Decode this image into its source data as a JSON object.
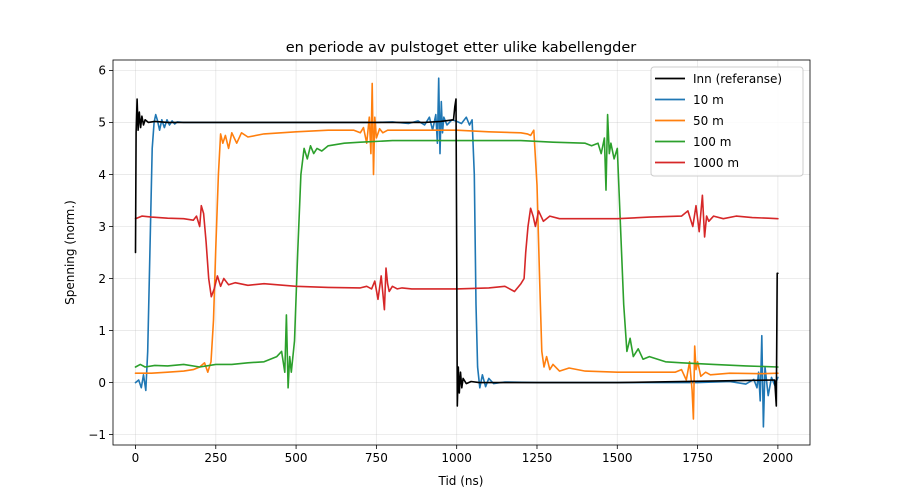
{
  "chart_data": {
    "type": "line",
    "title": "en periode av pulstoget etter ulike kabellengder",
    "xlabel": "Tid (ns)",
    "ylabel": "Spenning (norm.)",
    "xlim": [
      -70,
      2100
    ],
    "ylim": [
      -1.2,
      6.2
    ],
    "xticks": [
      0,
      250,
      500,
      750,
      1000,
      1250,
      1500,
      1750,
      2000
    ],
    "xtick_labels": [
      "0",
      "250",
      "500",
      "750",
      "1000",
      "1250",
      "1500",
      "1750",
      "2000"
    ],
    "yticks": [
      -1,
      0,
      1,
      2,
      3,
      4,
      5,
      6
    ],
    "ytick_labels": [
      "−1",
      "0",
      "1",
      "2",
      "3",
      "4",
      "5",
      "6"
    ],
    "grid": true,
    "legend_position": "top-right",
    "series": [
      {
        "name": "Inn (referanse)",
        "color": "#000000",
        "x": [
          0,
          2,
          5,
          8,
          12,
          16,
          20,
          25,
          30,
          40,
          60,
          100,
          500,
          900,
          950,
          990,
          994,
          998,
          1000,
          1002,
          1005,
          1008,
          1012,
          1016,
          1020,
          1030,
          1045,
          1070,
          1200,
          1500,
          1990,
          1995,
          1998,
          2000
        ],
        "y": [
          2.5,
          4.8,
          5.45,
          4.85,
          5.2,
          4.9,
          5.12,
          4.95,
          5.05,
          5.0,
          5.02,
          5.0,
          5.0,
          5.0,
          5.02,
          5.05,
          5.3,
          5.45,
          2.5,
          -0.45,
          0.3,
          -0.2,
          0.2,
          -0.1,
          0.08,
          -0.02,
          0.02,
          0.0,
          0.0,
          0.0,
          0.05,
          -0.45,
          2.1,
          2.1
        ]
      },
      {
        "name": "10 m",
        "color": "#1f77b4",
        "x": [
          0,
          10,
          18,
          25,
          32,
          38,
          45,
          52,
          58,
          63,
          68,
          75,
          82,
          90,
          98,
          106,
          114,
          122,
          130,
          150,
          250,
          500,
          700,
          750,
          800,
          850,
          880,
          900,
          915,
          925,
          935,
          940,
          944,
          948,
          952,
          956,
          960,
          970,
          985,
          1000,
          1015,
          1030,
          1040,
          1048,
          1055,
          1060,
          1065,
          1072,
          1080,
          1090,
          1100,
          1115,
          1150,
          1250,
          1500,
          1750,
          1850,
          1900,
          1925,
          1935,
          1940,
          1945,
          1950,
          1955,
          1960,
          1970,
          1980,
          1990,
          2000
        ],
        "y": [
          0,
          0.05,
          -0.1,
          0.15,
          -0.15,
          0.6,
          2.5,
          4.5,
          5.0,
          5.15,
          5.05,
          4.85,
          5.05,
          4.9,
          5.05,
          4.95,
          5.03,
          4.97,
          5.01,
          5.0,
          5.0,
          5.0,
          5.0,
          5.0,
          5.01,
          4.98,
          5.03,
          4.95,
          5.1,
          4.85,
          5.15,
          4.6,
          5.85,
          4.4,
          5.4,
          4.8,
          5.1,
          4.95,
          5.05,
          5.02,
          4.98,
          5.1,
          4.95,
          5.05,
          4.0,
          1.5,
          0.3,
          -0.1,
          0.15,
          -0.08,
          0.08,
          -0.02,
          0.01,
          0.0,
          0.0,
          0.0,
          0.02,
          -0.03,
          0.06,
          -0.1,
          0.2,
          -0.35,
          0.9,
          -0.85,
          0.3,
          -0.25,
          0.1,
          -0.05,
          0.1
        ]
      },
      {
        "name": "50 m",
        "color": "#ff7f0e",
        "x": [
          0,
          50,
          100,
          150,
          180,
          200,
          215,
          225,
          235,
          243,
          250,
          258,
          265,
          272,
          280,
          290,
          300,
          315,
          330,
          350,
          400,
          500,
          600,
          680,
          700,
          710,
          720,
          728,
          733,
          737,
          741,
          745,
          750,
          760,
          770,
          785,
          800,
          900,
          1000,
          1100,
          1200,
          1220,
          1230,
          1240,
          1250,
          1258,
          1265,
          1272,
          1280,
          1290,
          1300,
          1320,
          1350,
          1400,
          1500,
          1600,
          1680,
          1700,
          1715,
          1725,
          1733,
          1737,
          1741,
          1745,
          1750,
          1760,
          1775,
          1790,
          1850,
          1950,
          2000
        ],
        "y": [
          0.18,
          0.18,
          0.2,
          0.22,
          0.25,
          0.3,
          0.38,
          0.2,
          0.4,
          1.2,
          2.6,
          4.0,
          4.78,
          4.6,
          4.75,
          4.5,
          4.8,
          4.6,
          4.8,
          4.72,
          4.78,
          4.82,
          4.85,
          4.85,
          4.8,
          4.9,
          4.6,
          5.1,
          4.4,
          5.75,
          4.0,
          5.1,
          4.7,
          4.88,
          4.8,
          4.85,
          4.85,
          4.85,
          4.85,
          4.82,
          4.8,
          4.78,
          4.75,
          4.85,
          3.8,
          2.0,
          0.6,
          0.3,
          0.5,
          0.25,
          0.35,
          0.22,
          0.28,
          0.22,
          0.2,
          0.2,
          0.2,
          0.25,
          0.05,
          0.4,
          -0.15,
          -0.7,
          0.7,
          0.25,
          0.4,
          0.12,
          0.2,
          0.15,
          0.18,
          0.17,
          0.18
        ]
      },
      {
        "name": "100 m",
        "color": "#2ca02c",
        "x": [
          0,
          15,
          30,
          60,
          100,
          150,
          200,
          250,
          300,
          350,
          400,
          440,
          455,
          465,
          470,
          475,
          480,
          485,
          495,
          505,
          515,
          525,
          535,
          545,
          555,
          565,
          580,
          600,
          650,
          700,
          800,
          900,
          1000,
          1100,
          1200,
          1300,
          1400,
          1420,
          1440,
          1450,
          1460,
          1465,
          1470,
          1475,
          1480,
          1490,
          1500,
          1510,
          1520,
          1530,
          1540,
          1550,
          1565,
          1580,
          1600,
          1650,
          1700,
          1800,
          1900,
          2000
        ],
        "y": [
          0.3,
          0.35,
          0.3,
          0.33,
          0.32,
          0.35,
          0.3,
          0.35,
          0.35,
          0.38,
          0.4,
          0.5,
          0.6,
          0.2,
          1.3,
          -0.1,
          0.5,
          0.2,
          0.8,
          2.5,
          4.0,
          4.5,
          4.3,
          4.55,
          4.4,
          4.5,
          4.45,
          4.55,
          4.6,
          4.62,
          4.65,
          4.65,
          4.65,
          4.65,
          4.65,
          4.62,
          4.6,
          4.55,
          4.6,
          4.4,
          4.7,
          3.7,
          5.15,
          4.4,
          4.6,
          4.3,
          4.5,
          3.0,
          1.5,
          0.6,
          0.85,
          0.5,
          0.65,
          0.45,
          0.5,
          0.4,
          0.38,
          0.35,
          0.32,
          0.3
        ]
      },
      {
        "name": "1000 m",
        "color": "#d62728",
        "x": [
          0,
          20,
          50,
          100,
          150,
          180,
          190,
          200,
          205,
          212,
          220,
          228,
          236,
          245,
          255,
          265,
          275,
          290,
          310,
          350,
          400,
          500,
          600,
          700,
          720,
          735,
          745,
          755,
          765,
          775,
          780,
          785,
          790,
          800,
          815,
          830,
          860,
          900,
          1000,
          1100,
          1150,
          1180,
          1200,
          1210,
          1215,
          1222,
          1230,
          1238,
          1245,
          1255,
          1270,
          1290,
          1320,
          1400,
          1500,
          1600,
          1700,
          1720,
          1735,
          1745,
          1755,
          1765,
          1772,
          1778,
          1785,
          1800,
          1830,
          1870,
          1920,
          1970,
          2000
        ],
        "y": [
          3.15,
          3.2,
          3.18,
          3.16,
          3.15,
          3.12,
          3.2,
          3.0,
          3.4,
          3.25,
          2.7,
          2.0,
          1.65,
          1.8,
          2.05,
          1.85,
          2.0,
          1.88,
          1.92,
          1.87,
          1.9,
          1.85,
          1.83,
          1.82,
          1.85,
          1.8,
          1.95,
          1.6,
          2.05,
          1.4,
          2.2,
          1.9,
          1.75,
          1.85,
          1.8,
          1.82,
          1.8,
          1.8,
          1.8,
          1.82,
          1.85,
          1.75,
          1.9,
          2.0,
          2.5,
          3.0,
          3.35,
          3.2,
          3.0,
          3.3,
          3.1,
          3.2,
          3.15,
          3.15,
          3.15,
          3.18,
          3.2,
          3.3,
          3.0,
          3.4,
          2.9,
          3.6,
          2.8,
          3.2,
          3.1,
          3.2,
          3.15,
          3.2,
          3.17,
          3.16,
          3.15
        ]
      }
    ]
  }
}
